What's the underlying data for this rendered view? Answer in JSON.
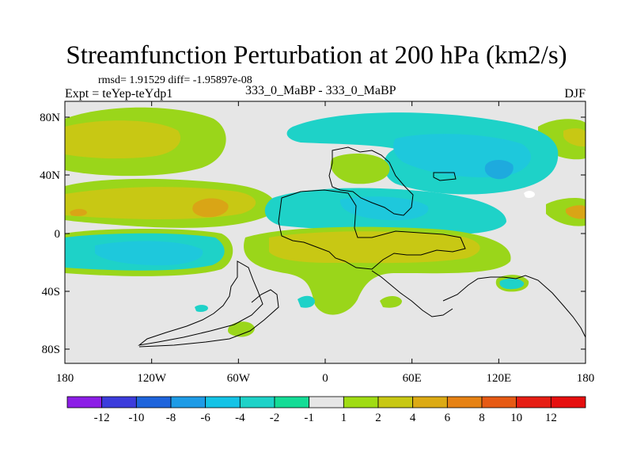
{
  "title": "Streamfunction Perturbation at 200 hPa (km2/s)",
  "subtitle": "rmsd= 1.91529 diff= -1.95897e-08",
  "left_string": "Expt = teYep-teYdp1",
  "center_string": "333_0_MaBP - 333_0_MaBP",
  "right_string": "DJF",
  "map": {
    "lat_ticks": [
      "80N",
      "40N",
      "0",
      "40S",
      "80S"
    ],
    "lon_ticks": [
      "180",
      "120W",
      "60W",
      "0",
      "60E",
      "120E",
      "180"
    ]
  },
  "colorbar": {
    "labels": [
      "-12",
      "-10",
      "-8",
      "-6",
      "-4",
      "-2",
      "-1",
      "1",
      "2",
      "4",
      "6",
      "8",
      "10",
      "12"
    ],
    "colors": [
      "#8c1ee6",
      "#3c3cdc",
      "#1e64dc",
      "#1e9be6",
      "#14c3e6",
      "#1ed2c8",
      "#14dc96",
      "#e6e6e6",
      "#a0dc14",
      "#c8c814",
      "#dcaa14",
      "#e68214",
      "#e65a14",
      "#e61e14",
      "#e60f0f"
    ]
  },
  "palette": {
    "background": "#e6e6e6",
    "green": "#9ad61a",
    "olive": "#c8c814",
    "orange": "#d9a516",
    "teal": "#1ed2c8",
    "cyan": "#1ec8dc",
    "blue": "#1eaade",
    "seagreen": "#28d796"
  }
}
